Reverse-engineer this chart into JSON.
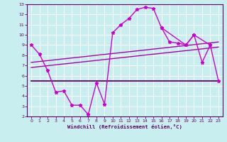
{
  "xlabel": "Windchill (Refroidissement éolien,°C)",
  "bg_color": "#c8eef0",
  "grid_color": "#ffffff",
  "xlim": [
    -0.5,
    23.5
  ],
  "ylim": [
    2,
    13
  ],
  "xticks": [
    0,
    1,
    2,
    3,
    4,
    5,
    6,
    7,
    8,
    9,
    10,
    11,
    12,
    13,
    14,
    15,
    16,
    17,
    18,
    19,
    20,
    21,
    22,
    23
  ],
  "yticks": [
    2,
    3,
    4,
    5,
    6,
    7,
    8,
    9,
    10,
    11,
    12,
    13
  ],
  "wavy_line": {
    "x": [
      0,
      1,
      2,
      3,
      4,
      5,
      6,
      7,
      8,
      9,
      10,
      11,
      12,
      13,
      14,
      15,
      16,
      19,
      20,
      22
    ],
    "y": [
      9.0,
      8.1,
      6.5,
      4.4,
      4.5,
      3.1,
      3.1,
      2.2,
      5.3,
      3.2,
      10.2,
      11.0,
      11.6,
      12.5,
      12.7,
      12.6,
      10.7,
      9.0,
      10.0,
      9.0
    ],
    "color": "#cc00cc",
    "linewidth": 1.0
  },
  "right_line": {
    "x": [
      16,
      17,
      18,
      19,
      20,
      21,
      22,
      23
    ],
    "y": [
      10.7,
      9.3,
      9.2,
      9.0,
      10.0,
      7.3,
      9.0,
      5.5
    ],
    "color": "#cc00cc",
    "linewidth": 1.0
  },
  "horiz_line": {
    "x": [
      0,
      23
    ],
    "y": [
      5.5,
      5.5
    ],
    "color": "#660066",
    "linewidth": 1.3
  },
  "diag_line1": {
    "x": [
      0,
      23
    ],
    "y": [
      6.8,
      8.8
    ],
    "color": "#aa00aa",
    "linewidth": 1.0
  },
  "diag_line2": {
    "x": [
      0,
      23
    ],
    "y": [
      7.3,
      9.3
    ],
    "color": "#aa00aa",
    "linewidth": 1.0
  },
  "font_color": "#660066",
  "tick_color": "#660066",
  "axis_color": "#660066",
  "marker": "*",
  "markersize": 3.5
}
